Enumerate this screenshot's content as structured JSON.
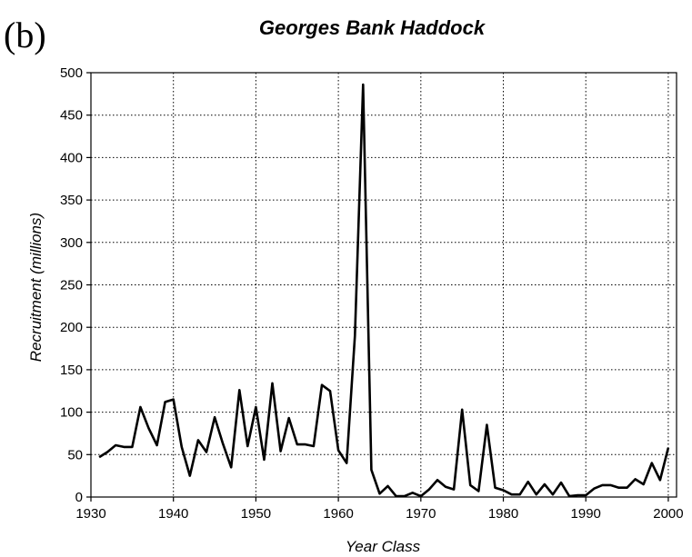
{
  "chart_data": {
    "type": "line",
    "panel_label": "(b)",
    "title": "Georges Bank Haddock",
    "xlabel": "Year Class",
    "ylabel": "Recruitment (millions)",
    "xlim": [
      1930,
      2001
    ],
    "ylim": [
      0,
      500
    ],
    "xticks": [
      1930,
      1940,
      1950,
      1960,
      1970,
      1980,
      1990,
      2000
    ],
    "yticks": [
      0,
      50,
      100,
      150,
      200,
      250,
      300,
      350,
      400,
      450,
      500
    ],
    "grid": true,
    "series": [
      {
        "x": [
          1931,
          1932,
          1933,
          1934,
          1935,
          1936,
          1937,
          1938,
          1939,
          1940,
          1941,
          1942,
          1943,
          1944,
          1945,
          1946,
          1947,
          1948,
          1949,
          1950,
          1951,
          1952,
          1953,
          1954,
          1955,
          1956,
          1957,
          1958,
          1959,
          1960,
          1961,
          1962,
          1963,
          1964,
          1965,
          1966,
          1967,
          1968,
          1969,
          1970,
          1971,
          1972,
          1973,
          1974,
          1975,
          1976,
          1977,
          1978,
          1979,
          1980,
          1981,
          1982,
          1983,
          1984,
          1985,
          1986,
          1987,
          1988,
          1989,
          1990,
          1991,
          1992,
          1993,
          1994,
          1995,
          1996,
          1997,
          1998,
          1999,
          2000
        ],
        "values": [
          47,
          53,
          61,
          59,
          59,
          106,
          81,
          61,
          112,
          115,
          59,
          25,
          67,
          53,
          94,
          63,
          35,
          126,
          60,
          106,
          44,
          134,
          54,
          93,
          62,
          62,
          60,
          132,
          125,
          55,
          40,
          190,
          486,
          32,
          4,
          13,
          1,
          1,
          5,
          1,
          9,
          20,
          12,
          9,
          103,
          14,
          7,
          85,
          11,
          8,
          3,
          3,
          18,
          3,
          15,
          3,
          17,
          1,
          2,
          2,
          10,
          14,
          14,
          11,
          11,
          21,
          15,
          40,
          20,
          58
        ]
      }
    ]
  }
}
